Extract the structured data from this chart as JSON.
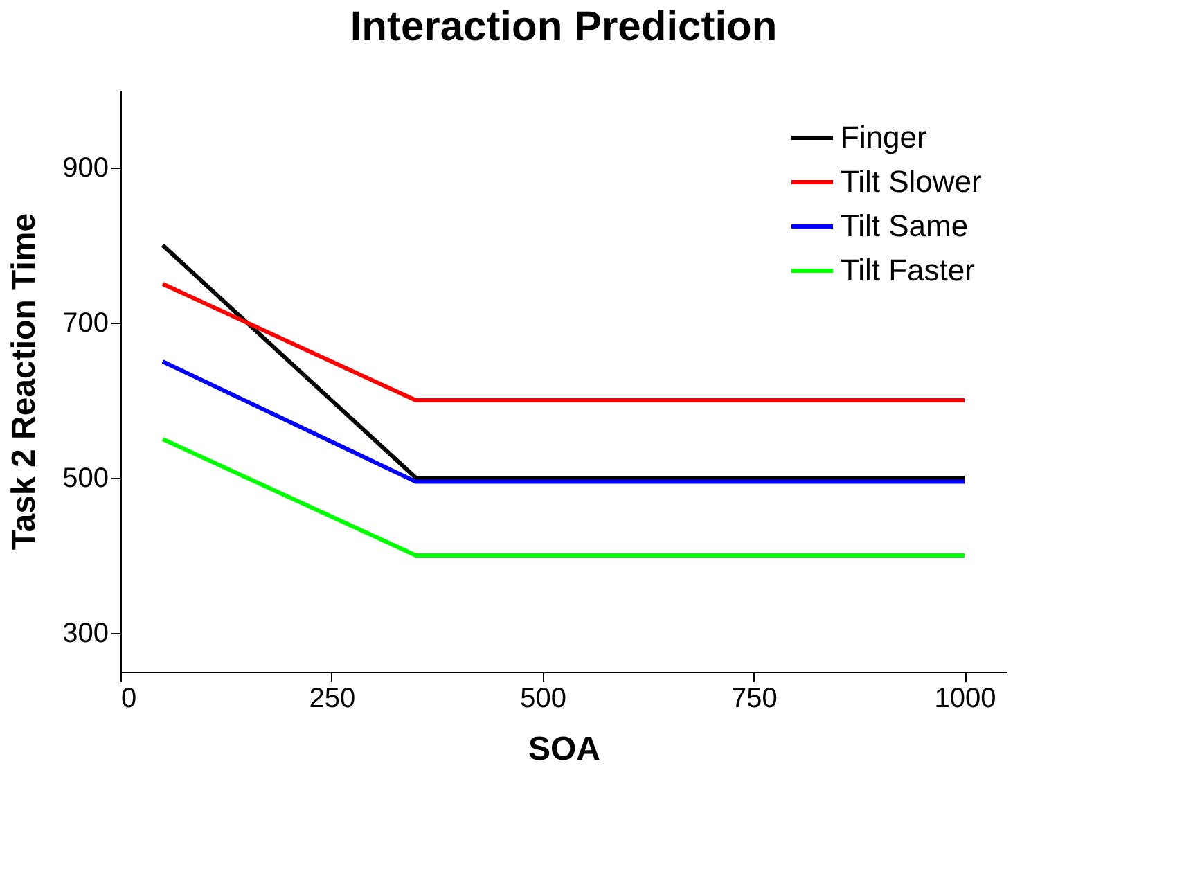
{
  "chart_data": {
    "type": "line",
    "title": "Interaction Prediction",
    "xlabel": "SOA",
    "ylabel": "Task 2 Reaction Time",
    "x": [
      50,
      350,
      1000
    ],
    "series": [
      {
        "name": "Finger",
        "color": "#000000",
        "values": [
          800,
          500,
          500
        ]
      },
      {
        "name": "Tilt Slower",
        "color": "#ff0000",
        "values": [
          750,
          600,
          600
        ]
      },
      {
        "name": "Tilt Same",
        "color": "#0000ff",
        "values": [
          650,
          495,
          495
        ]
      },
      {
        "name": "Tilt Faster",
        "color": "#00ff00",
        "values": [
          550,
          400,
          400
        ]
      }
    ],
    "xlim": [
      0,
      1050
    ],
    "xticks": [
      0,
      250,
      500,
      750,
      1000
    ],
    "ylim": [
      250,
      1000
    ],
    "yticks": [
      300,
      500,
      700,
      900
    ],
    "grid": false,
    "legend": "top right",
    "marker": "none",
    "line_style": "solid"
  }
}
